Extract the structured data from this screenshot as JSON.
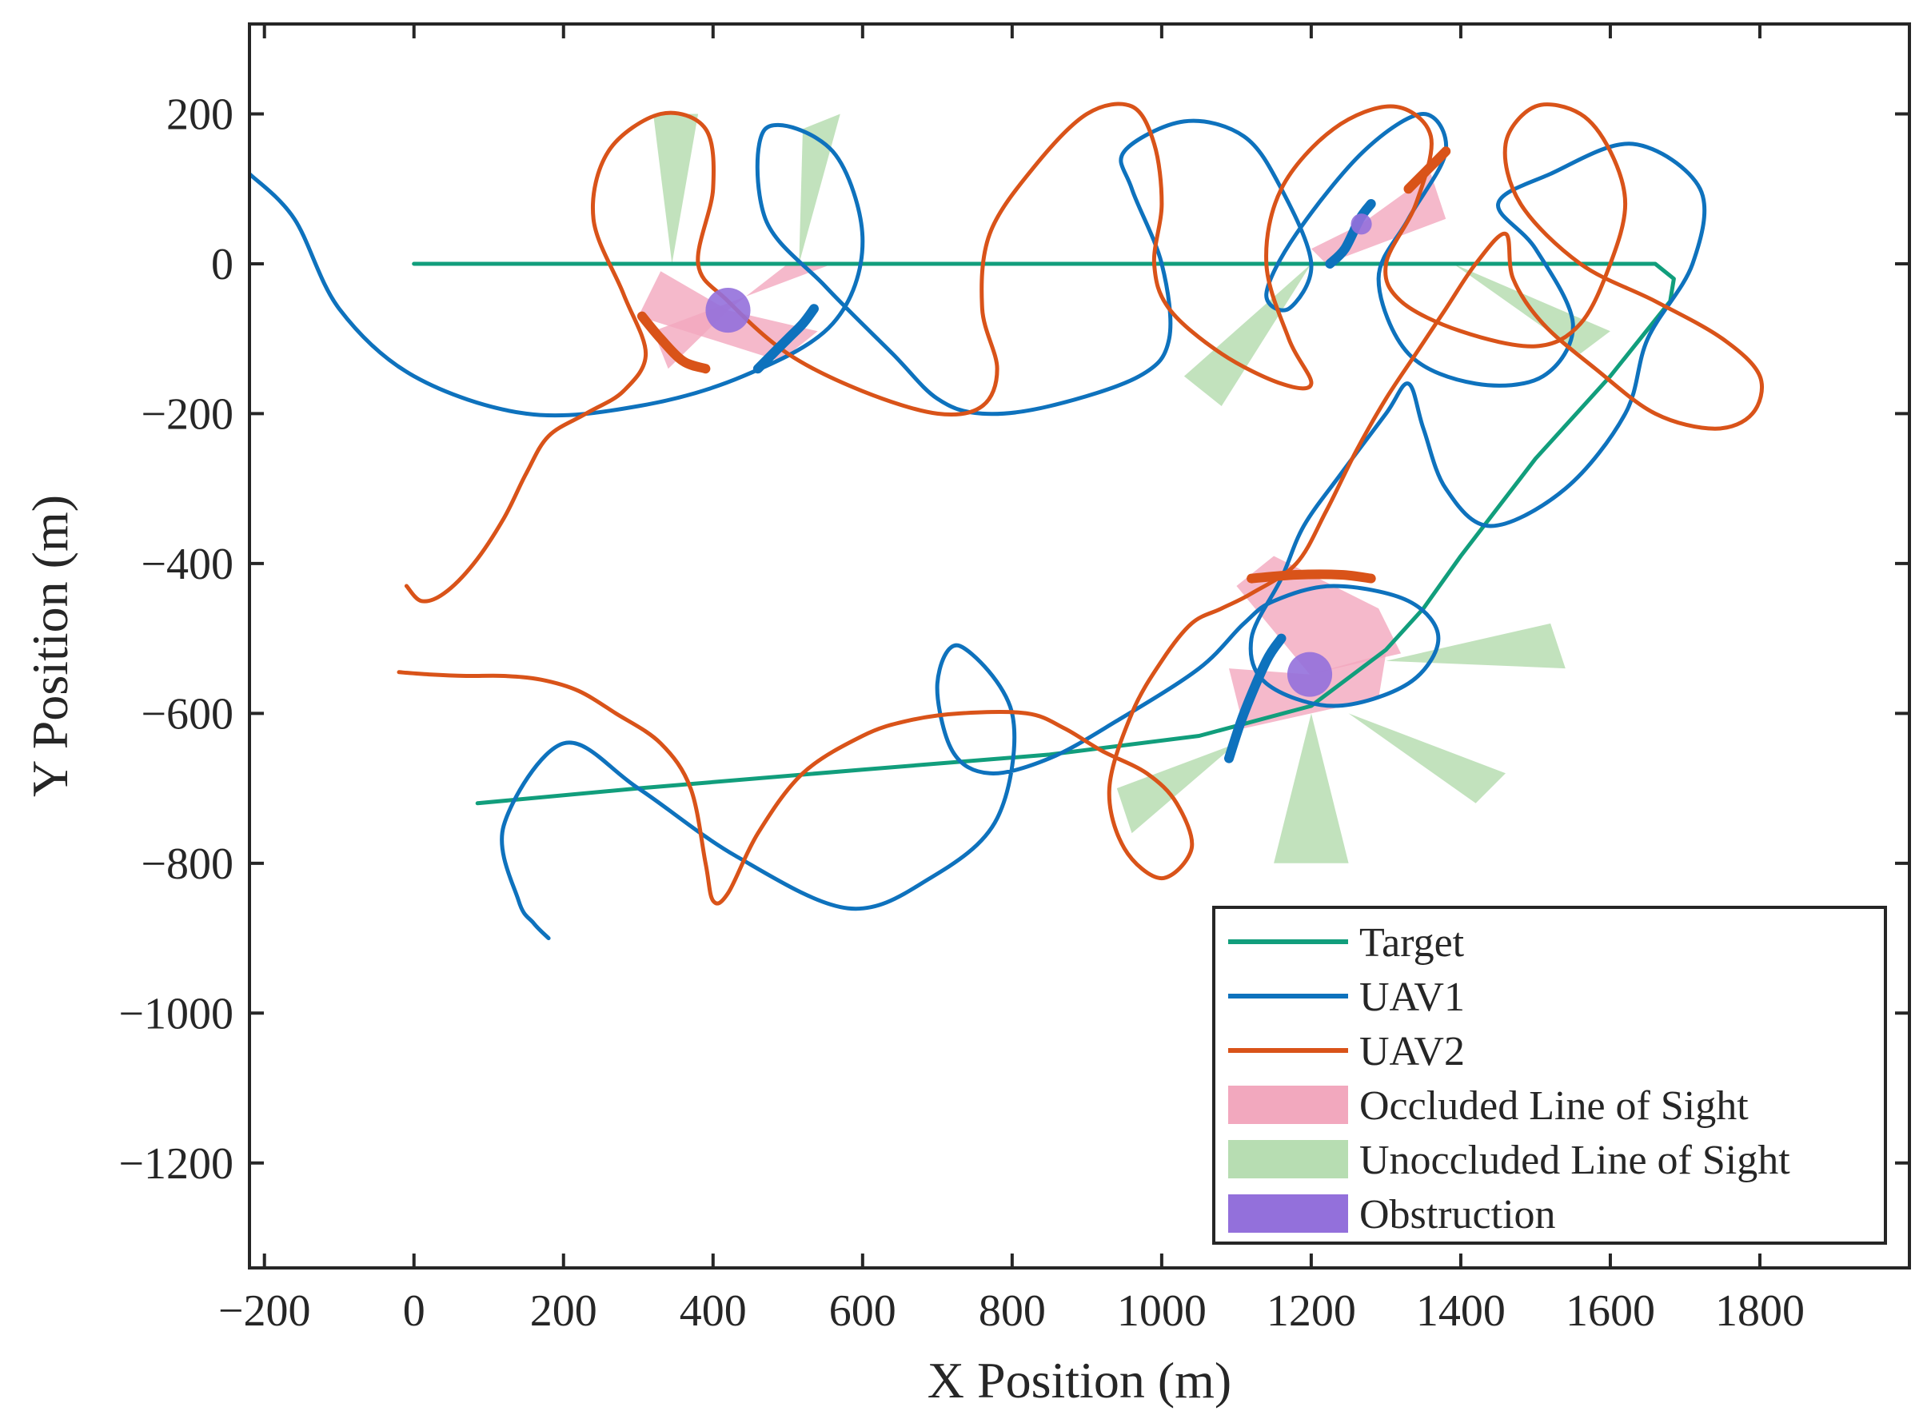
{
  "chart_data": {
    "type": "line",
    "title": "",
    "xlabel": "X Position (m)",
    "ylabel": "Y Position (m)",
    "xlim": [
      -220,
      2000
    ],
    "ylim": [
      -1340,
      320
    ],
    "xticks": [
      -200,
      0,
      200,
      400,
      600,
      800,
      1000,
      1200,
      1400,
      1600,
      1800
    ],
    "yticks": [
      200,
      0,
      -200,
      -400,
      -600,
      -800,
      -1000,
      -1200
    ],
    "xtick_labels": [
      "−200",
      "0",
      "200",
      "400",
      "600",
      "800",
      "1000",
      "1200",
      "1400",
      "1600",
      "1800"
    ],
    "ytick_labels": [
      "200",
      "0",
      "−200",
      "−400",
      "−600",
      "−800",
      "−1000",
      "−1200"
    ],
    "grid": false,
    "legend_position": "bottom-right",
    "colors": {
      "target": "#119E7C",
      "uav1": "#0E72BD",
      "uav2": "#D95319",
      "occluded": "#F2A8BE",
      "unoccluded": "#B7DDB2",
      "obstruction": "#9370DB"
    },
    "legend": [
      {
        "label": "Target",
        "kind": "line",
        "color_key": "target"
      },
      {
        "label": "UAV1",
        "kind": "line",
        "color_key": "uav1"
      },
      {
        "label": "UAV2",
        "kind": "line",
        "color_key": "uav2"
      },
      {
        "label": "Occluded Line of Sight",
        "kind": "patch",
        "color_key": "occluded"
      },
      {
        "label": "Unoccluded Line of Sight",
        "kind": "patch",
        "color_key": "unoccluded"
      },
      {
        "label": "Obstruction",
        "kind": "patch",
        "color_key": "obstruction"
      }
    ],
    "series": [
      {
        "name": "Target",
        "kind": "polyline",
        "x": [
          0,
          400,
          800,
          1200,
          1660,
          1685,
          1680,
          1600,
          1500,
          1400,
          1350,
          1300,
          1200,
          1050,
          850,
          600,
          300,
          85
        ],
        "y": [
          0,
          0,
          0,
          0,
          0,
          -20,
          -50,
          -150,
          -260,
          -390,
          -460,
          -515,
          -590,
          -630,
          -655,
          -675,
          -700,
          -720
        ]
      },
      {
        "name": "UAV1",
        "kind": "spline",
        "x": [
          -220,
          -160,
          -100,
          0,
          150,
          300,
          440,
          560,
          600,
          560,
          470,
          470,
          550,
          640,
          700,
          760,
          850,
          970,
          1010,
          1000,
          960,
          950,
          1030,
          1110,
          1160,
          1200,
          1170,
          1140,
          1180,
          1270,
          1350,
          1380,
          1330,
          1290,
          1330,
          1420,
          1510,
          1550,
          1500,
          1450,
          1520,
          1630,
          1720,
          1710,
          1650,
          1620,
          1540,
          1440,
          1380,
          1350,
          1330,
          1300,
          1240,
          1190,
          1160,
          1120,
          1140,
          1230,
          1330,
          1370,
          1330,
          1230,
          1150,
          1110,
          1050,
          940,
          850,
          770,
          720,
          700,
          730,
          800,
          780,
          690,
          580,
          430,
          300,
          200,
          120,
          140,
          160,
          180
        ],
        "y": [
          120,
          60,
          -60,
          -150,
          -200,
          -190,
          -150,
          -80,
          30,
          150,
          180,
          60,
          -30,
          -120,
          -180,
          -200,
          -190,
          -150,
          -100,
          0,
          100,
          150,
          190,
          170,
          100,
          0,
          -60,
          -40,
          40,
          150,
          200,
          150,
          60,
          -20,
          -120,
          -160,
          -150,
          -80,
          20,
          80,
          120,
          160,
          100,
          0,
          -100,
          -200,
          -300,
          -350,
          -300,
          -220,
          -160,
          -200,
          -280,
          -350,
          -420,
          -500,
          -560,
          -590,
          -560,
          -500,
          -450,
          -430,
          -450,
          -480,
          -540,
          -610,
          -660,
          -680,
          -650,
          -560,
          -510,
          -600,
          -740,
          -820,
          -860,
          -790,
          -700,
          -640,
          -750,
          -850,
          -880,
          -900
        ]
      },
      {
        "name": "UAV2",
        "kind": "spline",
        "x": [
          -10,
          10,
          40,
          80,
          120,
          150,
          180,
          230,
          280,
          310,
          280,
          240,
          260,
          330,
          390,
          400,
          380,
          420,
          500,
          600,
          700,
          760,
          780,
          760,
          770,
          830,
          900,
          960,
          990,
          1000,
          990,
          1010,
          1080,
          1160,
          1200,
          1170,
          1140,
          1160,
          1230,
          1310,
          1360,
          1340,
          1300,
          1320,
          1400,
          1500,
          1560,
          1600,
          1620,
          1600,
          1560,
          1500,
          1460,
          1480,
          1560,
          1660,
          1750,
          1800,
          1790,
          1740,
          1660,
          1580,
          1510,
          1470,
          1460,
          1420,
          1380,
          1340,
          1300,
          1260,
          1220,
          1180,
          1120,
          1080,
          1040,
          1000,
          960,
          930,
          950,
          1000,
          1040,
          1020,
          980,
          920,
          870,
          820,
          730,
          660,
          600,
          520,
          460,
          420,
          400,
          390,
          370,
          330,
          270,
          220,
          170,
          120,
          70,
          20,
          -20
        ],
        "y": [
          -430,
          -450,
          -440,
          -400,
          -340,
          -280,
          -230,
          -200,
          -170,
          -120,
          -40,
          60,
          150,
          200,
          180,
          100,
          0,
          -50,
          -120,
          -170,
          -200,
          -190,
          -140,
          -60,
          40,
          130,
          200,
          210,
          160,
          80,
          0,
          -60,
          -120,
          -160,
          -160,
          -100,
          0,
          100,
          180,
          210,
          170,
          80,
          0,
          -50,
          -90,
          -110,
          -80,
          0,
          80,
          150,
          200,
          210,
          160,
          80,
          0,
          -50,
          -100,
          -150,
          -200,
          -220,
          -200,
          -140,
          -80,
          -20,
          40,
          0,
          -60,
          -120,
          -180,
          -250,
          -330,
          -400,
          -440,
          -460,
          -480,
          -530,
          -600,
          -700,
          -780,
          -820,
          -780,
          -720,
          -680,
          -650,
          -620,
          -600,
          -600,
          -610,
          -630,
          -680,
          -760,
          -840,
          -850,
          -800,
          -700,
          -640,
          -600,
          -570,
          -555,
          -550,
          -550,
          -548,
          -545
        ]
      }
    ],
    "obstructions": [
      {
        "x": 420,
        "y": -62,
        "r": 30
      },
      {
        "x": 1267,
        "y": 53,
        "r": 14
      },
      {
        "x": 1198,
        "y": -548,
        "r": 30
      }
    ],
    "occluded_sectors": [
      {
        "apex": [
          420,
          -62
        ],
        "points": [
          [
            330,
            -10
          ],
          [
            300,
            -70
          ],
          [
            490,
            -130
          ],
          [
            540,
            -90
          ]
        ]
      },
      {
        "apex": [
          420,
          -62
        ],
        "points": [
          [
            500,
            0
          ],
          [
            560,
            0
          ],
          [
            320,
            -90
          ],
          [
            340,
            -140
          ]
        ]
      },
      {
        "apex": [
          1267,
          53
        ],
        "points": [
          [
            1360,
            120
          ],
          [
            1380,
            60
          ],
          [
            1220,
            0
          ],
          [
            1200,
            20
          ]
        ]
      },
      {
        "apex": [
          1198,
          -548
        ],
        "points": [
          [
            1100,
            -430
          ],
          [
            1150,
            -390
          ],
          [
            1290,
            -460
          ],
          [
            1320,
            -520
          ]
        ]
      },
      {
        "apex": [
          1198,
          -548
        ],
        "points": [
          [
            1090,
            -540
          ],
          [
            1110,
            -620
          ],
          [
            1290,
            -580
          ],
          [
            1300,
            -520
          ]
        ]
      }
    ],
    "unoccluded_sectors": [
      {
        "apex": [
          345,
          0
        ],
        "points": [
          [
            320,
            200
          ],
          [
            380,
            200
          ]
        ]
      },
      {
        "apex": [
          515,
          0
        ],
        "points": [
          [
            570,
            200
          ],
          [
            520,
            180
          ]
        ]
      },
      {
        "apex": [
          1200,
          0
        ],
        "points": [
          [
            1030,
            -150
          ],
          [
            1080,
            -190
          ]
        ]
      },
      {
        "apex": [
          1390,
          0
        ],
        "points": [
          [
            1600,
            -90
          ],
          [
            1560,
            -120
          ]
        ]
      },
      {
        "apex": [
          1300,
          -530
        ],
        "points": [
          [
            1520,
            -480
          ],
          [
            1540,
            -540
          ]
        ]
      },
      {
        "apex": [
          1250,
          -600
        ],
        "points": [
          [
            1460,
            -680
          ],
          [
            1420,
            -720
          ]
        ]
      },
      {
        "apex": [
          1200,
          -600
        ],
        "points": [
          [
            1150,
            -800
          ],
          [
            1250,
            -800
          ]
        ]
      },
      {
        "apex": [
          1100,
          -640
        ],
        "points": [
          [
            940,
            -700
          ],
          [
            960,
            -760
          ]
        ]
      }
    ],
    "highlight_arcs": {
      "uav1": [
        {
          "x": [
            460,
            480,
            500,
            520,
            535
          ],
          "y": [
            -140,
            -120,
            -100,
            -80,
            -60
          ]
        },
        {
          "x": [
            1090,
            1110,
            1140,
            1160
          ],
          "y": [
            -660,
            -600,
            -530,
            -500
          ]
        },
        {
          "x": [
            1225,
            1245,
            1265,
            1280
          ],
          "y": [
            0,
            20,
            60,
            80
          ]
        }
      ],
      "uav2": [
        {
          "x": [
            305,
            330,
            360,
            390
          ],
          "y": [
            -70,
            -100,
            -130,
            -140
          ]
        },
        {
          "x": [
            1330,
            1350,
            1370,
            1380
          ],
          "y": [
            100,
            120,
            140,
            150
          ]
        },
        {
          "x": [
            1120,
            1180,
            1240,
            1280
          ],
          "y": [
            -420,
            -415,
            -415,
            -420
          ]
        }
      ]
    }
  }
}
